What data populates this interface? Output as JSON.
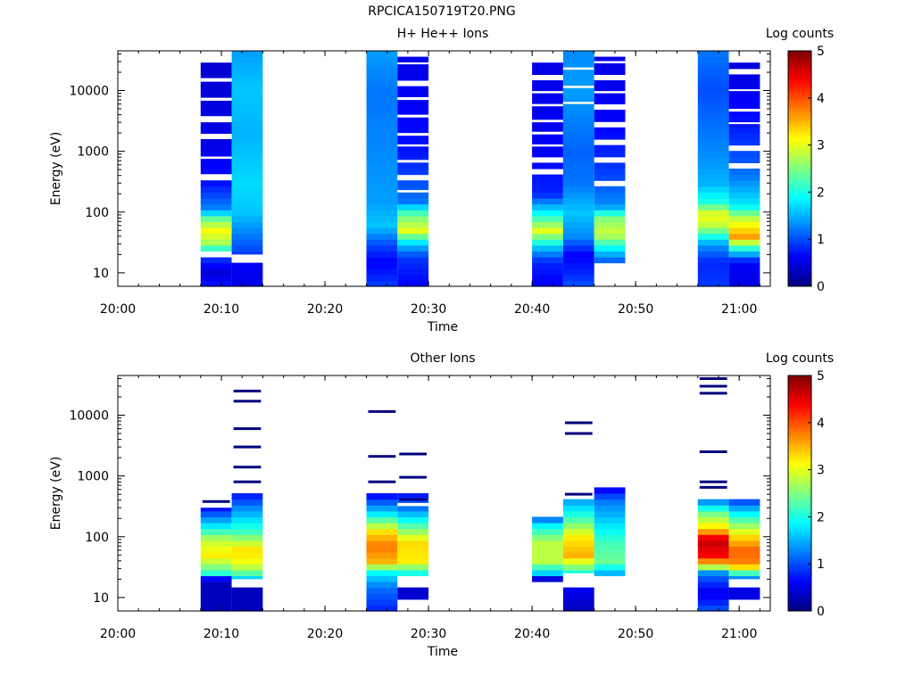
{
  "title": "RPCICA150719T20.PNG",
  "colorbar_label": "Log counts",
  "colormap": [
    "#00007f",
    "#0000ff",
    "#0080ff",
    "#00ffff",
    "#80ff80",
    "#ffff00",
    "#ff8000",
    "#ff0000",
    "#7f0000"
  ],
  "chart_data": [
    {
      "type": "heatmap",
      "title": "H+ He++ Ions",
      "xlabel": "Time",
      "ylabel": "Energy (eV)",
      "x_ticks": [
        "20:00",
        "20:10",
        "20:20",
        "20:30",
        "20:40",
        "20:50",
        "21:00"
      ],
      "y_ticks": [
        "10",
        "100",
        "1000",
        "10000"
      ],
      "y_scale": "log",
      "ylim": [
        6,
        45000
      ],
      "xlim": [
        "20:00",
        "21:03"
      ],
      "colorbar": {
        "label": "Log counts",
        "range": [
          0,
          5
        ],
        "ticks": [
          "0",
          "1",
          "2",
          "3",
          "4",
          "5"
        ]
      },
      "columns": [
        {
          "t_start": "20:08",
          "t_end": "20:11",
          "profile": [
            [
              6.5,
              0.7
            ],
            [
              10,
              0.4
            ],
            [
              20,
              1.0
            ],
            [
              28,
              2.6
            ],
            [
              50,
              3.1
            ],
            [
              75,
              2.5
            ],
            [
              110,
              1.3
            ],
            [
              300,
              0.7
            ],
            [
              1500,
              0.5
            ],
            [
              30000,
              0.4
            ]
          ],
          "gaps": [
            [
              18,
              22
            ],
            [
              14000,
              16000
            ],
            [
              6800,
              7600
            ],
            [
              3000,
              3600
            ],
            [
              1700,
              1900
            ],
            [
              750,
              820
            ],
            [
              370,
              420
            ]
          ]
        },
        {
          "t_start": "20:11",
          "t_end": "20:14",
          "profile": [
            [
              6.5,
              0.5
            ],
            [
              14,
              0.6
            ],
            [
              20,
              0.9
            ],
            [
              50,
              1.3
            ],
            [
              100,
              1.6
            ],
            [
              300,
              1.7
            ],
            [
              2000,
              1.5
            ],
            [
              10000,
              1.6
            ],
            [
              45000,
              1.4
            ]
          ],
          "gaps": [
            [
              16,
              20
            ]
          ]
        },
        {
          "t_start": "20:24",
          "t_end": "20:27",
          "profile": [
            [
              6.5,
              0.9
            ],
            [
              15,
              0.6
            ],
            [
              30,
              1.0
            ],
            [
              60,
              1.6
            ],
            [
              150,
              1.4
            ],
            [
              1000,
              1.3
            ],
            [
              10000,
              1.2
            ],
            [
              45000,
              1.4
            ]
          ],
          "gaps": []
        },
        {
          "t_start": "20:27",
          "t_end": "20:30",
          "profile": [
            [
              6.5,
              0.6
            ],
            [
              18,
              0.9
            ],
            [
              30,
              1.6
            ],
            [
              50,
              3.0
            ],
            [
              90,
              2.4
            ],
            [
              150,
              1.2
            ],
            [
              1000,
              0.7
            ],
            [
              40000,
              0.5
            ]
          ],
          "gaps": [
            [
              27000,
              29000
            ],
            [
              13000,
              14500
            ],
            [
              7000,
              7800
            ],
            [
              3600,
              4000
            ],
            [
              1800,
              2000
            ],
            [
              1200,
              1300
            ],
            [
              650,
              720
            ],
            [
              350,
              390
            ],
            [
              210,
              230
            ]
          ]
        },
        {
          "t_start": "20:40",
          "t_end": "20:43",
          "profile": [
            [
              6.5,
              0.6
            ],
            [
              15,
              0.8
            ],
            [
              25,
              1.5
            ],
            [
              50,
              3.0
            ],
            [
              90,
              2.0
            ],
            [
              200,
              0.8
            ],
            [
              1000,
              0.6
            ],
            [
              40000,
              0.5
            ]
          ],
          "gaps": [
            [
              30000,
              33000
            ],
            [
              16000,
              17500
            ],
            [
              9000,
              9800
            ],
            [
              5500,
              6000
            ],
            [
              3000,
              3300
            ],
            [
              1900,
              2100
            ],
            [
              1200,
              1300
            ],
            [
              700,
              760
            ],
            [
              450,
              490
            ]
          ]
        },
        {
          "t_start": "20:43",
          "t_end": "20:46",
          "profile": [
            [
              6.5,
              1.0
            ],
            [
              10,
              0.8
            ],
            [
              20,
              0.6
            ],
            [
              40,
              1.3
            ],
            [
              100,
              1.6
            ],
            [
              300,
              1.2
            ],
            [
              1000,
              1.1
            ],
            [
              10000,
              1.4
            ],
            [
              45000,
              1.3
            ]
          ],
          "gaps": [
            [
              22000,
              24000
            ],
            [
              11000,
              12000
            ],
            [
              6000,
              6500
            ]
          ]
        },
        {
          "t_start": "20:46",
          "t_end": "20:49",
          "profile": [
            [
              15,
              1.0
            ],
            [
              25,
              1.8
            ],
            [
              45,
              2.9
            ],
            [
              80,
              2.5
            ],
            [
              130,
              1.3
            ],
            [
              500,
              0.9
            ],
            [
              3000,
              0.6
            ],
            [
              40000,
              0.5
            ]
          ],
          "gaps": [
            [
              28000,
              30500
            ],
            [
              15000,
              16500
            ],
            [
              9000,
              9800
            ],
            [
              5000,
              5500
            ],
            [
              2600,
              2800
            ],
            [
              1300,
              1450
            ],
            [
              720,
              780
            ],
            [
              280,
              310
            ]
          ]
        },
        {
          "t_start": "20:56",
          "t_end": "20:59",
          "profile": [
            [
              6.5,
              0.9
            ],
            [
              15,
              0.8
            ],
            [
              30,
              1.4
            ],
            [
              60,
              2.8
            ],
            [
              90,
              3.1
            ],
            [
              150,
              2.0
            ],
            [
              300,
              1.5
            ],
            [
              1000,
              1.3
            ],
            [
              10000,
              1.0
            ],
            [
              45000,
              1.2
            ]
          ],
          "gaps": []
        },
        {
          "t_start": "20:59",
          "t_end": "21:02",
          "profile": [
            [
              6.5,
              0.5
            ],
            [
              15,
              0.6
            ],
            [
              25,
              2.0
            ],
            [
              40,
              3.6
            ],
            [
              80,
              2.8
            ],
            [
              130,
              1.8
            ],
            [
              400,
              1.2
            ],
            [
              3000,
              0.7
            ],
            [
              40000,
              0.4
            ]
          ],
          "gaps": [
            [
              32000,
              40000
            ],
            [
              20000,
              22000
            ],
            [
              9800,
              10500
            ],
            [
              4500,
              5000
            ],
            [
              2800,
              3000
            ],
            [
              1100,
              1200
            ],
            [
              580,
              620
            ]
          ]
        }
      ]
    },
    {
      "type": "heatmap",
      "title": "Other Ions",
      "xlabel": "Time",
      "ylabel": "Energy (eV)",
      "x_ticks": [
        "20:00",
        "20:10",
        "20:20",
        "20:30",
        "20:40",
        "20:50",
        "21:00"
      ],
      "y_ticks": [
        "10",
        "100",
        "1000",
        "10000"
      ],
      "y_scale": "log",
      "ylim": [
        6,
        45000
      ],
      "xlim": [
        "20:00",
        "21:03"
      ],
      "colorbar": {
        "label": "Log counts",
        "range": [
          0,
          5
        ],
        "ticks": [
          "0",
          "1",
          "2",
          "3",
          "4",
          "5"
        ]
      },
      "columns": [
        {
          "t_start": "20:08",
          "t_end": "20:11",
          "profile": [
            [
              6.5,
              0.3
            ],
            [
              20,
              0.3
            ],
            [
              22,
              1.8
            ],
            [
              30,
              2.4
            ],
            [
              50,
              3.2
            ],
            [
              90,
              2.8
            ],
            [
              150,
              1.8
            ],
            [
              300,
              0.7
            ]
          ],
          "gaps": [
            [
              300,
              340
            ]
          ],
          "lines": [
            380
          ]
        },
        {
          "t_start": "20:11",
          "t_end": "20:14",
          "profile": [
            [
              6.5,
              0.3
            ],
            [
              15,
              0.3
            ],
            [
              22,
              2.0
            ],
            [
              35,
              3.0
            ],
            [
              60,
              3.3
            ],
            [
              120,
              2.2
            ],
            [
              300,
              1.3
            ],
            [
              550,
              0.6
            ]
          ],
          "gaps": [
            [
              15,
              20
            ]
          ],
          "lines": [
            25000,
            17000,
            6000,
            3000,
            1400,
            800
          ]
        },
        {
          "t_start": "20:24",
          "t_end": "20:27",
          "profile": [
            [
              6.5,
              0.8
            ],
            [
              15,
              1.2
            ],
            [
              25,
              1.8
            ],
            [
              40,
              3.5
            ],
            [
              70,
              3.8
            ],
            [
              120,
              3.3
            ],
            [
              250,
              1.7
            ],
            [
              500,
              0.6
            ]
          ],
          "gaps": [
            [
              600,
              650
            ]
          ],
          "lines": [
            11500,
            2100,
            800
          ]
        },
        {
          "t_start": "20:27",
          "t_end": "20:30",
          "profile": [
            [
              10,
              0.4
            ],
            [
              15,
              0.4
            ],
            [
              22,
              1.6
            ],
            [
              40,
              3.2
            ],
            [
              80,
              3.3
            ],
            [
              150,
              2.3
            ],
            [
              300,
              1.2
            ],
            [
              550,
              0.6
            ]
          ],
          "gaps": [
            [
              15,
              21
            ],
            [
              320,
              360
            ]
          ],
          "lines": [
            2300,
            950,
            410
          ]
        },
        {
          "t_start": "20:40",
          "t_end": "20:43",
          "profile": [
            [
              20,
              0.3
            ],
            [
              25,
              1.6
            ],
            [
              40,
              2.8
            ],
            [
              80,
              2.8
            ],
            [
              150,
              1.9
            ],
            [
              230,
              0.8
            ]
          ],
          "gaps": [],
          "lines": []
        },
        {
          "t_start": "20:43",
          "t_end": "20:46",
          "profile": [
            [
              6.5,
              0.3
            ],
            [
              15,
              0.6
            ],
            [
              25,
              2.0
            ],
            [
              50,
              3.5
            ],
            [
              100,
              3.2
            ],
            [
              200,
              2.2
            ],
            [
              400,
              1.4
            ]
          ],
          "gaps": [
            [
              15,
              25
            ],
            [
              420,
              470
            ]
          ],
          "lines": [
            7500,
            5000,
            500
          ]
        },
        {
          "t_start": "20:46",
          "t_end": "20:49",
          "profile": [
            [
              25,
              1.5
            ],
            [
              40,
              2.4
            ],
            [
              80,
              2.2
            ],
            [
              200,
              1.6
            ],
            [
              400,
              1.2
            ],
            [
              600,
              0.6
            ]
          ],
          "gaps": [],
          "lines": []
        },
        {
          "t_start": "20:56",
          "t_end": "20:59",
          "profile": [
            [
              6.5,
              1.0
            ],
            [
              12,
              0.5
            ],
            [
              25,
              1.2
            ],
            [
              35,
              3.3
            ],
            [
              50,
              4.4
            ],
            [
              90,
              4.7
            ],
            [
              130,
              3.4
            ],
            [
              250,
              2.4
            ],
            [
              430,
              1.0
            ]
          ],
          "gaps": [
            [
              430,
              480
            ]
          ],
          "lines": [
            40000,
            30000,
            23000,
            2500,
            800,
            650
          ]
        },
        {
          "t_start": "20:59",
          "t_end": "21:02",
          "profile": [
            [
              10,
              0.5
            ],
            [
              15,
              0.5
            ],
            [
              22,
              1.5
            ],
            [
              35,
              3.7
            ],
            [
              60,
              3.9
            ],
            [
              100,
              3.3
            ],
            [
              200,
              2.2
            ],
            [
              380,
              1.0
            ]
          ],
          "gaps": [
            [
              15,
              20
            ]
          ],
          "lines": []
        }
      ]
    }
  ]
}
